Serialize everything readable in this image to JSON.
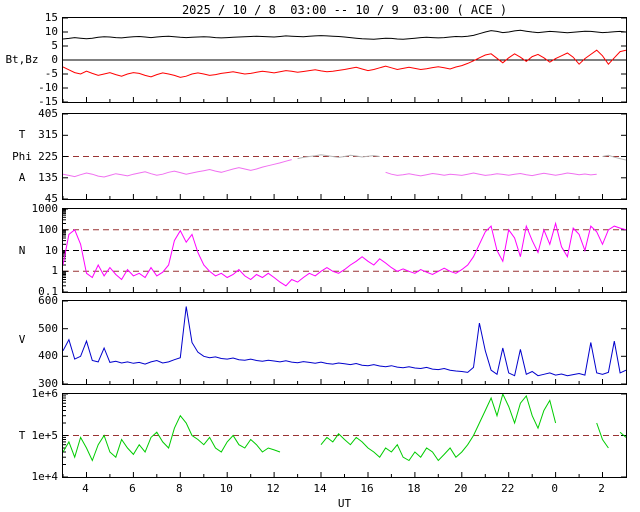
{
  "chart_data": {
    "type": "line",
    "title": "2025 / 10 / 8  03:00 -- 10 / 9  03:00 ( ACE )",
    "x_axis": {
      "label": "UT",
      "t_start": 3,
      "t_end": 27,
      "t_step": 0.25,
      "ticks": [
        {
          "t": 4,
          "label": "4"
        },
        {
          "t": 6,
          "label": "6"
        },
        {
          "t": 8,
          "label": "8"
        },
        {
          "t": 10,
          "label": "10"
        },
        {
          "t": 12,
          "label": "12"
        },
        {
          "t": 14,
          "label": "14"
        },
        {
          "t": 16,
          "label": "16"
        },
        {
          "t": 18,
          "label": "18"
        },
        {
          "t": 20,
          "label": "20"
        },
        {
          "t": 22,
          "label": "22"
        },
        {
          "t": 24,
          "label": "0"
        },
        {
          "t": 26,
          "label": "2"
        }
      ]
    },
    "panels": [
      {
        "id": "bt-bz",
        "scale": "linear",
        "ymin": -15,
        "ymax": 15,
        "yticks": [
          {
            "v": 15,
            "label": "15"
          },
          {
            "v": 10,
            "label": "10"
          },
          {
            "v": 5,
            "label": "5"
          },
          {
            "v": 0,
            "label": "0"
          },
          {
            "v": -5,
            "label": "-5"
          },
          {
            "v": -10,
            "label": "-10"
          },
          {
            "v": -15,
            "label": "-15"
          }
        ],
        "side_labels": [
          {
            "text": "Bt,Bz",
            "y": 0
          }
        ],
        "reflines": [
          {
            "y": 0,
            "color": "#000000",
            "dashed": false
          }
        ],
        "series": [
          {
            "name": "Bt",
            "color": "#000000",
            "values": [
              7.5,
              7.7,
              8.0,
              7.8,
              7.6,
              7.8,
              8.1,
              8.3,
              8.2,
              8.0,
              7.9,
              8.1,
              8.3,
              8.4,
              8.2,
              8.0,
              8.2,
              8.4,
              8.5,
              8.3,
              8.1,
              8.0,
              8.1,
              8.2,
              8.3,
              8.2,
              8.0,
              7.9,
              8.0,
              8.1,
              8.2,
              8.3,
              8.4,
              8.5,
              8.4,
              8.3,
              8.2,
              8.4,
              8.6,
              8.5,
              8.4,
              8.3,
              8.5,
              8.6,
              8.7,
              8.6,
              8.5,
              8.4,
              8.2,
              8.0,
              7.8,
              7.6,
              7.5,
              7.4,
              7.6,
              7.8,
              7.7,
              7.5,
              7.4,
              7.6,
              7.8,
              8.0,
              8.1,
              8.0,
              7.9,
              8.0,
              8.2,
              8.4,
              8.3,
              8.5,
              8.8,
              9.4,
              10.0,
              10.5,
              10.2,
              9.8,
              10.0,
              10.4,
              10.6,
              10.3,
              10.0,
              9.8,
              10.0,
              10.2,
              10.1,
              9.9,
              9.7,
              9.9,
              10.1,
              10.3,
              10.2,
              10.0,
              9.8,
              9.9,
              10.1,
              10.2,
              10.0
            ]
          },
          {
            "name": "Bz",
            "color": "#ff0000",
            "values": [
              -2.5,
              -3.5,
              -4.5,
              -5.0,
              -4.0,
              -4.8,
              -5.5,
              -5.0,
              -4.5,
              -5.2,
              -5.8,
              -5.0,
              -4.5,
              -4.8,
              -5.5,
              -6.0,
              -5.2,
              -4.6,
              -5.0,
              -5.5,
              -6.2,
              -5.8,
              -5.0,
              -4.6,
              -5.0,
              -5.5,
              -5.2,
              -4.8,
              -4.5,
              -4.2,
              -4.6,
              -5.0,
              -4.8,
              -4.4,
              -4.0,
              -4.3,
              -4.6,
              -4.2,
              -3.8,
              -4.0,
              -4.4,
              -4.1,
              -3.8,
              -3.5,
              -3.9,
              -4.2,
              -4.0,
              -3.7,
              -3.4,
              -3.0,
              -2.6,
              -3.2,
              -3.8,
              -3.4,
              -2.8,
              -2.2,
              -2.8,
              -3.4,
              -3.0,
              -2.6,
              -3.0,
              -3.4,
              -3.1,
              -2.7,
              -2.4,
              -2.8,
              -3.2,
              -2.5,
              -2.0,
              -1.2,
              -0.3,
              0.8,
              1.8,
              2.2,
              0.6,
              -1.0,
              0.8,
              2.2,
              1.0,
              -0.5,
              1.2,
              2.0,
              0.8,
              -0.8,
              0.5,
              1.5,
              2.5,
              1.0,
              -1.5,
              0.5,
              2.0,
              3.5,
              1.5,
              -1.5,
              0.8,
              3.0,
              3.5
            ]
          }
        ]
      },
      {
        "id": "phi",
        "scale": "linear",
        "ymin": 45,
        "ymax": 405,
        "yticks": [
          {
            "v": 405,
            "label": "405"
          },
          {
            "v": 315,
            "label": "315"
          },
          {
            "v": 225,
            "label": "225"
          },
          {
            "v": 135,
            "label": "135"
          },
          {
            "v": 45,
            "label": "45"
          }
        ],
        "side_labels": [
          {
            "text": "T",
            "y": 315
          },
          {
            "text": "Phi",
            "y": 225
          },
          {
            "text": "A",
            "y": 135
          }
        ],
        "reflines": [
          {
            "y": 225,
            "color": "#993333",
            "dashed": true
          }
        ],
        "series": [
          {
            "name": "Phi",
            "color": "#f070f0",
            "values": [
              150,
              145,
              140,
              148,
              155,
              150,
              142,
              138,
              145,
              152,
              148,
              143,
              150,
              155,
              160,
              152,
              146,
              150,
              158,
              163,
              157,
              150,
              155,
              160,
              165,
              170,
              163,
              158,
              165,
              172,
              178,
              172,
              166,
              172,
              180,
              186,
              192,
              198,
              205,
              212,
              null,
              null,
              null,
              null,
              null,
              null,
              null,
              null,
              null,
              null,
              null,
              null,
              null,
              null,
              null,
              158,
              150,
              145,
              148,
              152,
              147,
              143,
              148,
              153,
              150,
              146,
              150,
              148,
              145,
              150,
              155,
              150,
              145,
              148,
              152,
              149,
              146,
              150,
              153,
              148,
              144,
              149,
              154,
              150,
              146,
              150,
              155,
              152,
              148,
              151,
              147,
              150,
              null,
              null,
              null,
              null,
              null
            ]
          },
          {
            "name": "Phi-questionable",
            "color": "#b5b5b5",
            "points": [
              [
                13.0,
                216
              ],
              [
                13.25,
                221
              ],
              [
                13.5,
                225
              ],
              [
                13.75,
                228
              ],
              [
                14.0,
                232
              ],
              [
                14.25,
                229
              ],
              [
                14.5,
                225
              ],
              [
                14.75,
                221
              ],
              [
                15.0,
                225
              ],
              [
                15.25,
                230
              ],
              [
                15.5,
                227
              ],
              [
                15.75,
                223
              ],
              [
                16.0,
                226
              ],
              [
                16.25,
                229
              ],
              [
                16.5,
                225
              ],
              [
                26.0,
                225
              ],
              [
                26.25,
                230
              ],
              [
                26.5,
                222
              ],
              [
                26.75,
                216
              ],
              [
                27.0,
                210
              ]
            ]
          }
        ]
      },
      {
        "id": "n",
        "scale": "log",
        "ymin": 0.1,
        "ymax": 1000,
        "yticks": [
          {
            "v": 1000,
            "label": "1000"
          },
          {
            "v": 100,
            "label": "100"
          },
          {
            "v": 10,
            "label": "10"
          },
          {
            "v": 1,
            "label": "1"
          },
          {
            "v": 0.1,
            "label": "0.1"
          }
        ],
        "side_labels": [
          {
            "text": "N",
            "y": 10
          }
        ],
        "reflines": [
          {
            "y": 100,
            "color": "#993333",
            "dashed": true
          },
          {
            "y": 10,
            "color": "#000000",
            "dashed": true
          },
          {
            "y": 1,
            "color": "#993333",
            "dashed": true
          }
        ],
        "series": [
          {
            "name": "N",
            "color": "#ff00ff",
            "values": [
              2,
              60,
              100,
              20,
              0.8,
              0.5,
              2,
              0.6,
              1.5,
              0.7,
              0.4,
              1.2,
              0.6,
              0.8,
              0.5,
              1.5,
              0.6,
              0.9,
              2,
              30,
              90,
              25,
              60,
              8,
              2,
              1,
              0.6,
              0.8,
              0.5,
              0.7,
              1.2,
              0.6,
              0.4,
              0.7,
              0.5,
              0.8,
              0.5,
              0.3,
              0.2,
              0.4,
              0.3,
              0.5,
              0.8,
              0.6,
              1.0,
              1.5,
              1.0,
              0.8,
              1.2,
              2,
              3,
              5,
              3,
              2,
              4,
              2.5,
              1.5,
              1.0,
              1.3,
              1.0,
              0.8,
              1.2,
              0.9,
              0.7,
              1.0,
              1.4,
              1.0,
              0.8,
              1.2,
              2,
              5,
              20,
              80,
              150,
              10,
              3,
              100,
              40,
              5,
              150,
              30,
              8,
              100,
              20,
              200,
              15,
              5,
              120,
              60,
              10,
              150,
              80,
              20,
              100,
              150,
              120,
              100
            ]
          }
        ]
      },
      {
        "id": "v",
        "scale": "linear",
        "ymin": 300,
        "ymax": 600,
        "yticks": [
          {
            "v": 600,
            "label": "600"
          },
          {
            "v": 500,
            "label": "500"
          },
          {
            "v": 400,
            "label": "400"
          },
          {
            "v": 300,
            "label": "300"
          }
        ],
        "side_labels": [
          {
            "text": "V",
            "y": 460
          }
        ],
        "reflines": [],
        "series": [
          {
            "name": "V",
            "color": "#0000cc",
            "values": [
              420,
              460,
              390,
              400,
              455,
              385,
              380,
              430,
              378,
              382,
              376,
              380,
              375,
              378,
              372,
              380,
              385,
              376,
              380,
              388,
              395,
              580,
              450,
              415,
              400,
              395,
              398,
              392,
              390,
              394,
              388,
              386,
              390,
              385,
              382,
              386,
              383,
              380,
              384,
              379,
              377,
              381,
              378,
              375,
              379,
              374,
              372,
              376,
              373,
              370,
              374,
              368,
              366,
              370,
              365,
              362,
              366,
              361,
              359,
              362,
              358,
              356,
              360,
              354,
              352,
              356,
              350,
              347,
              345,
              342,
              360,
              520,
              420,
              350,
              335,
              430,
              340,
              330,
              425,
              335,
              345,
              330,
              335,
              340,
              332,
              336,
              330,
              334,
              338,
              332,
              450,
              340,
              335,
              342,
              455,
              340,
              350
            ]
          }
        ]
      },
      {
        "id": "temp",
        "scale": "log",
        "ymin": 10000.0,
        "ymax": 1000000.0,
        "yticks": [
          {
            "v": 1000000.0,
            "label": "1e+6"
          },
          {
            "v": 100000.0,
            "label": "1e+5"
          },
          {
            "v": 10000.0,
            "label": "1e+4"
          }
        ],
        "side_labels": [
          {
            "text": "T",
            "y": 100000.0
          }
        ],
        "reflines": [
          {
            "y": 100000.0,
            "color": "#993333",
            "dashed": true
          }
        ],
        "series": [
          {
            "name": "T",
            "color": "#00cc00",
            "values": [
              40000.0,
              70000.0,
              30000.0,
              90000.0,
              50000.0,
              25000.0,
              60000.0,
              100000.0,
              40000.0,
              30000.0,
              80000.0,
              50000.0,
              35000.0,
              60000.0,
              40000.0,
              90000.0,
              120000.0,
              70000.0,
              50000.0,
              150000.0,
              300000.0,
              200000.0,
              100000.0,
              80000.0,
              60000.0,
              90000.0,
              50000.0,
              40000.0,
              70000.0,
              100000.0,
              60000.0,
              50000.0,
              80000.0,
              60000.0,
              40000.0,
              50000.0,
              45000.0,
              40000.0,
              null,
              null,
              null,
              null,
              null,
              null,
              60000.0,
              90000.0,
              70000.0,
              110000.0,
              80000.0,
              60000.0,
              90000.0,
              70000.0,
              50000.0,
              40000.0,
              30000.0,
              50000.0,
              40000.0,
              60000.0,
              30000.0,
              25000.0,
              40000.0,
              30000.0,
              50000.0,
              40000.0,
              25000.0,
              35000.0,
              50000.0,
              30000.0,
              40000.0,
              60000.0,
              100000.0,
              200000.0,
              400000.0,
              800000.0,
              300000.0,
              1000000.0,
              500000.0,
              200000.0,
              600000.0,
              900000.0,
              300000.0,
              150000.0,
              400000.0,
              700000.0,
              200000.0,
              null,
              100000.0,
              null,
              300000.0,
              null,
              null,
              200000.0,
              80000.0,
              50000.0,
              null,
              120000.0,
              90000.0
            ]
          }
        ]
      }
    ]
  }
}
